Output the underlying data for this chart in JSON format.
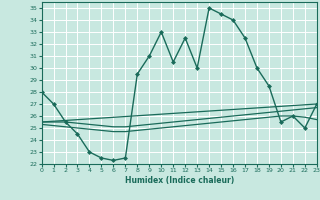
{
  "title": "",
  "xlabel": "Humidex (Indice chaleur)",
  "xlim": [
    0,
    23
  ],
  "ylim": [
    22,
    35.5
  ],
  "yticks": [
    22,
    23,
    24,
    25,
    26,
    27,
    28,
    29,
    30,
    31,
    32,
    33,
    34,
    35
  ],
  "xticks": [
    0,
    1,
    2,
    3,
    4,
    5,
    6,
    7,
    8,
    9,
    10,
    11,
    12,
    13,
    14,
    15,
    16,
    17,
    18,
    19,
    20,
    21,
    22,
    23
  ],
  "line_color": "#1a6b5a",
  "bg_color": "#c8e8e0",
  "grid_color": "#ffffff",
  "lines": [
    {
      "x": [
        0,
        1,
        2,
        3,
        4,
        5,
        6,
        7,
        8,
        9,
        10,
        11,
        12,
        13,
        14,
        15,
        16,
        17,
        18,
        19,
        20,
        21,
        22,
        23
      ],
      "y": [
        28,
        27,
        25.5,
        24.5,
        23,
        22.5,
        22.3,
        22.5,
        29.5,
        31,
        33,
        30.5,
        32.5,
        30,
        35,
        34.5,
        34,
        32.5,
        30,
        28.5,
        25.5,
        26,
        25,
        27
      ],
      "marker": "D",
      "markersize": 2.0,
      "linewidth": 1.0
    },
    {
      "x": [
        0,
        1,
        2,
        3,
        4,
        5,
        6,
        7,
        8,
        9,
        10,
        11,
        12,
        13,
        14,
        15,
        16,
        17,
        18,
        19,
        20,
        21,
        22,
        23
      ],
      "y": [
        25.5,
        25.5,
        25.5,
        25.4,
        25.3,
        25.2,
        25.1,
        25.1,
        25.2,
        25.3,
        25.4,
        25.5,
        25.6,
        25.7,
        25.8,
        25.9,
        26.0,
        26.1,
        26.2,
        26.3,
        26.4,
        26.5,
        26.6,
        26.7
      ],
      "marker": null,
      "markersize": 0,
      "linewidth": 0.9
    },
    {
      "x": [
        0,
        1,
        2,
        3,
        4,
        5,
        6,
        7,
        8,
        9,
        10,
        11,
        12,
        13,
        14,
        15,
        16,
        17,
        18,
        19,
        20,
        21,
        22,
        23
      ],
      "y": [
        25.3,
        25.2,
        25.1,
        25.0,
        24.9,
        24.8,
        24.7,
        24.7,
        24.8,
        24.9,
        25.0,
        25.1,
        25.2,
        25.3,
        25.4,
        25.5,
        25.6,
        25.7,
        25.8,
        25.9,
        26.0,
        26.0,
        25.9,
        25.7
      ],
      "marker": null,
      "markersize": 0,
      "linewidth": 0.9
    },
    {
      "x": [
        0,
        23
      ],
      "y": [
        25.5,
        27.0
      ],
      "marker": null,
      "markersize": 0,
      "linewidth": 0.9
    }
  ]
}
